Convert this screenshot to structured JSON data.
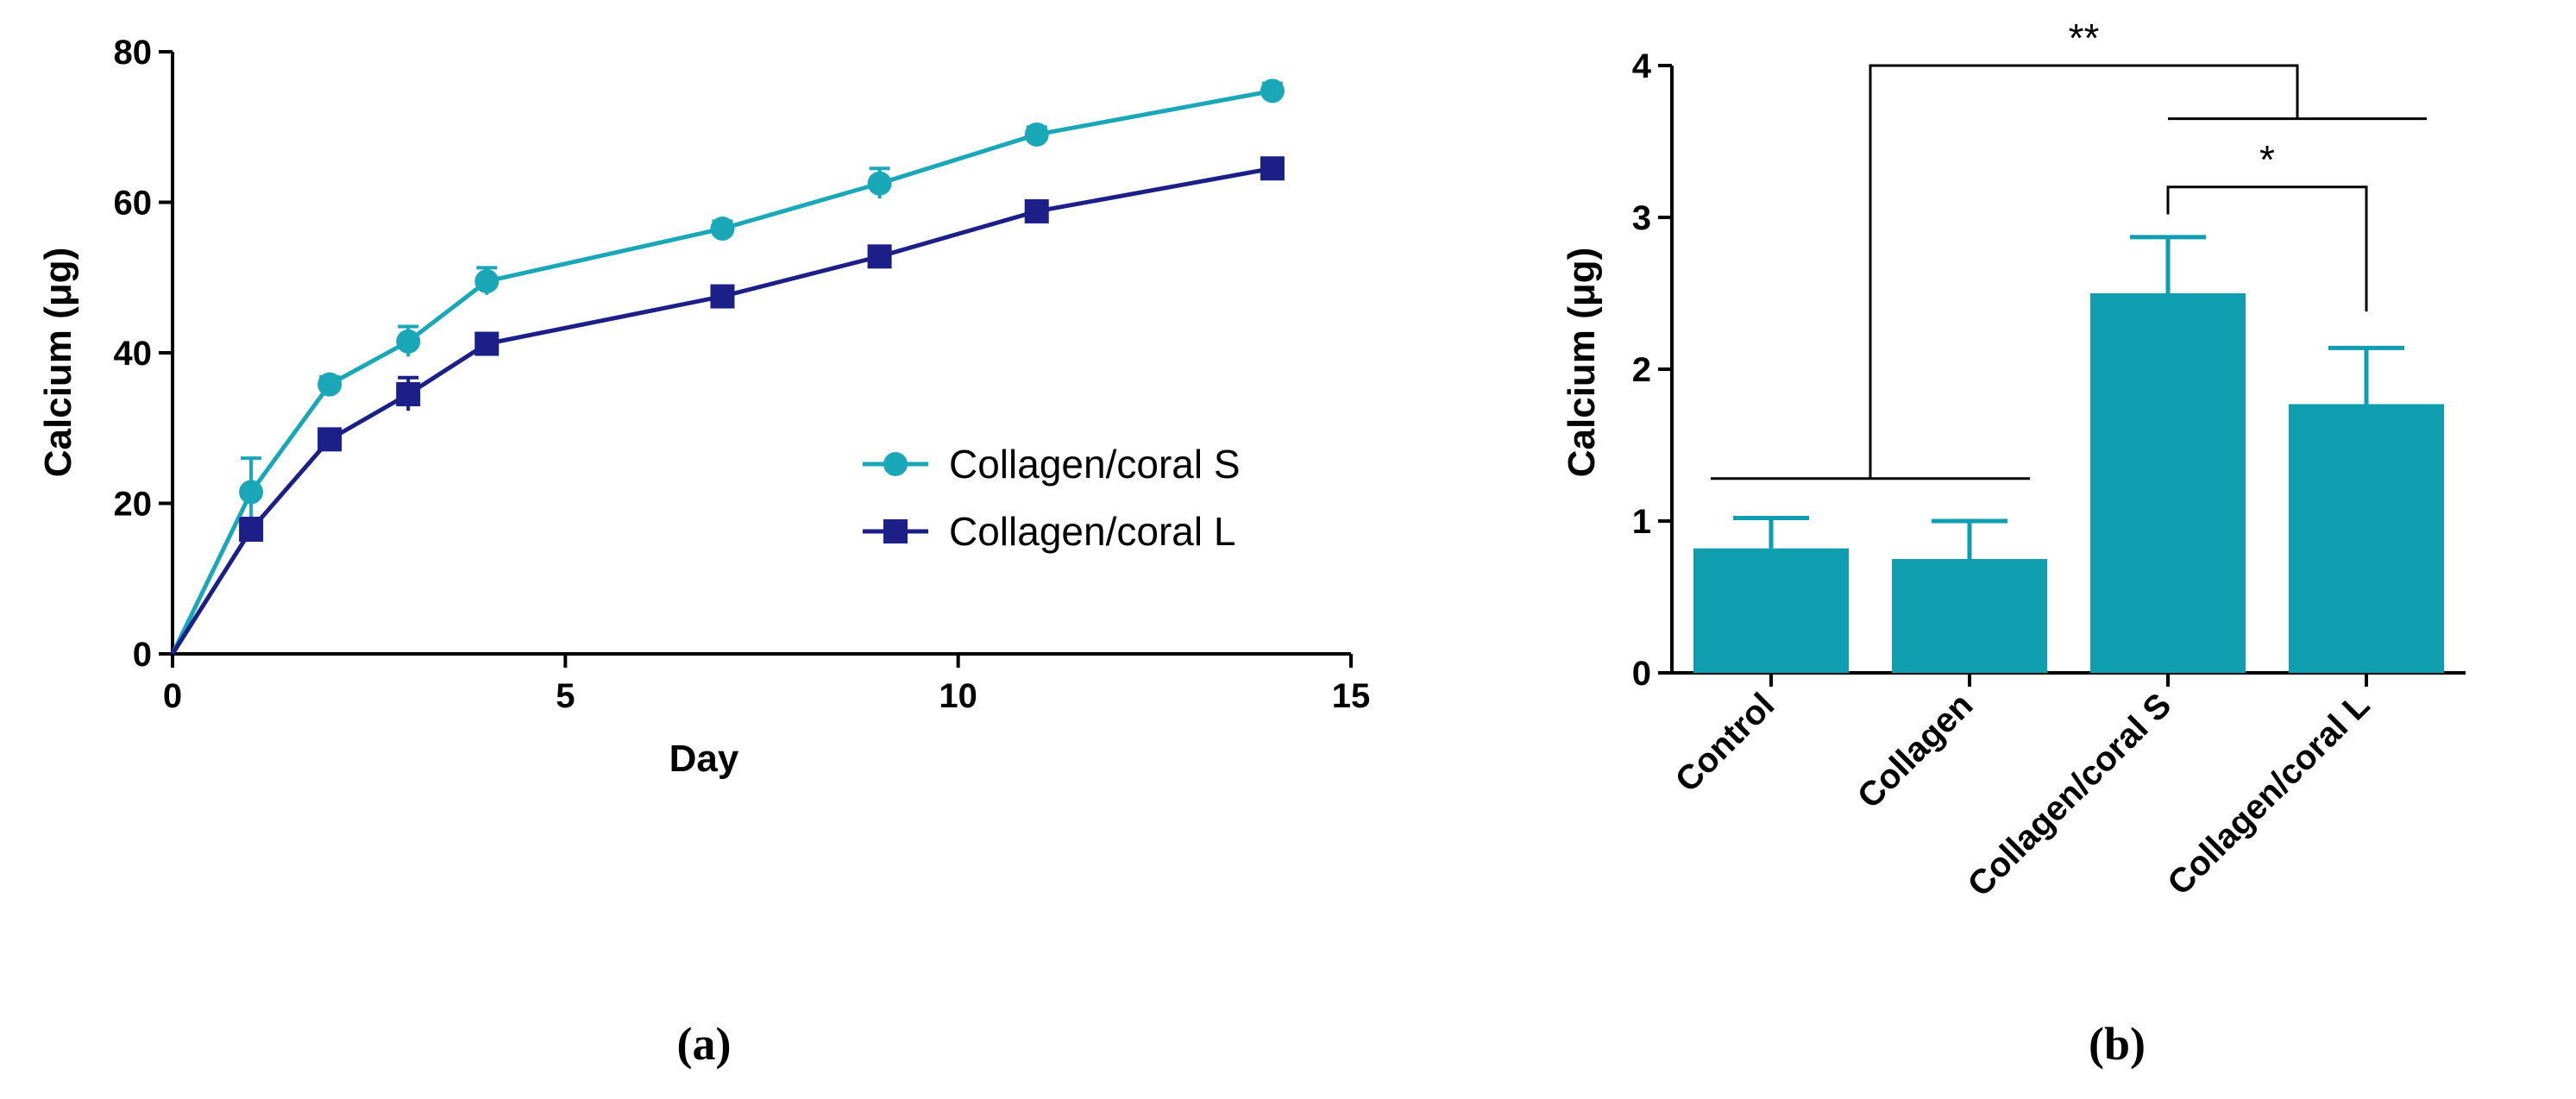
{
  "chart_data": [
    {
      "panel": "(a)",
      "type": "line",
      "xlabel": "Day",
      "ylabel": "Calcium (μg)",
      "xlim": [
        0,
        15
      ],
      "ylim": [
        0,
        80
      ],
      "xticks": [
        "0",
        "5",
        "10",
        "15"
      ],
      "yticks": [
        "0",
        "20",
        "40",
        "60",
        "80"
      ],
      "legend_position": "center-right",
      "series": [
        {
          "name": "Collagen/coral S",
          "color": "#1aa8b8",
          "marker": "circle",
          "x": [
            0,
            1,
            2,
            3,
            4,
            7,
            9,
            11,
            14
          ],
          "y": [
            0,
            21.5,
            35.8,
            41.5,
            49.5,
            56.5,
            62.5,
            69,
            74.8
          ],
          "err": [
            0,
            4.5,
            1,
            2,
            1.8,
            1,
            2,
            1,
            1
          ]
        },
        {
          "name": "Collagen/coral L",
          "color": "#1b1f87",
          "marker": "square",
          "x": [
            0,
            1,
            2,
            3,
            4,
            7,
            9,
            11,
            14
          ],
          "y": [
            0,
            16.5,
            28.5,
            34.5,
            41.2,
            47.5,
            52.8,
            58.8,
            64.5
          ],
          "err": [
            0,
            1.5,
            1,
            2.2,
            1,
            1,
            1,
            1,
            1
          ]
        }
      ]
    },
    {
      "panel": "(b)",
      "type": "bar",
      "ylabel": "Calcium (μg)",
      "ylim": [
        0,
        4
      ],
      "yticks": [
        "0",
        "1",
        "2",
        "3",
        "4"
      ],
      "bar_color": "#0e9eaf",
      "categories": [
        "Control",
        "Collagen",
        "Collagen/coral S",
        "Collagen/coral L"
      ],
      "values": [
        0.82,
        0.75,
        2.5,
        1.77
      ],
      "errors": [
        0.2,
        0.25,
        0.37,
        0.37
      ],
      "significance": [
        {
          "label": "**",
          "comparison": "Control, Collagen vs Collagen/coral S, Collagen/coral L"
        },
        {
          "label": "*",
          "comparison": "Collagen/coral S vs Collagen/coral L"
        }
      ]
    }
  ]
}
